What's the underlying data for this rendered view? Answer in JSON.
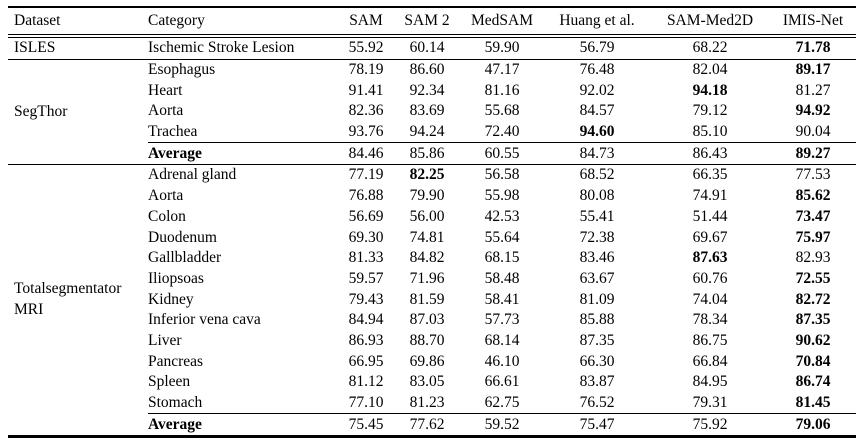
{
  "table": {
    "columns": [
      {
        "label": "Dataset"
      },
      {
        "label": "Category"
      },
      {
        "label": "SAM"
      },
      {
        "label": "SAM 2"
      },
      {
        "label": "MedSAM"
      },
      {
        "label": "Huang et al."
      },
      {
        "label": "SAM-Med2D"
      },
      {
        "label": "IMIS-Net"
      }
    ],
    "groups": [
      {
        "dataset": "ISLES",
        "rows": [
          {
            "category": "Ischemic Stroke Lesion",
            "values": [
              "55.92",
              "60.14",
              "59.90",
              "56.79",
              "68.22",
              "71.78"
            ],
            "bold": [
              5
            ]
          }
        ]
      },
      {
        "dataset": "SegThor",
        "rows": [
          {
            "category": "Esophagus",
            "values": [
              "78.19",
              "86.60",
              "47.17",
              "76.48",
              "82.04",
              "89.17"
            ],
            "bold": [
              5
            ]
          },
          {
            "category": "Heart",
            "values": [
              "91.41",
              "92.34",
              "81.16",
              "92.02",
              "94.18",
              "81.27"
            ],
            "bold": [
              4
            ]
          },
          {
            "category": "Aorta",
            "values": [
              "82.36",
              "83.69",
              "55.68",
              "84.57",
              "79.12",
              "94.92"
            ],
            "bold": [
              5
            ]
          },
          {
            "category": "Trachea",
            "values": [
              "93.76",
              "94.24",
              "72.40",
              "94.60",
              "85.10",
              "90.04"
            ],
            "bold": [
              3
            ]
          },
          {
            "category": "Average",
            "bold_category": true,
            "average": true,
            "values": [
              "84.46",
              "85.86",
              "60.55",
              "84.73",
              "86.43",
              "89.27"
            ],
            "bold": [
              5
            ]
          }
        ]
      },
      {
        "dataset": "Totalsegmentator MRI",
        "rows": [
          {
            "category": "Adrenal gland",
            "values": [
              "77.19",
              "82.25",
              "56.58",
              "68.52",
              "66.35",
              "77.53"
            ],
            "bold": [
              1
            ]
          },
          {
            "category": "Aorta",
            "values": [
              "76.88",
              "79.90",
              "55.98",
              "80.08",
              "74.91",
              "85.62"
            ],
            "bold": [
              5
            ]
          },
          {
            "category": "Colon",
            "values": [
              "56.69",
              "56.00",
              "42.53",
              "55.41",
              "51.44",
              "73.47"
            ],
            "bold": [
              5
            ]
          },
          {
            "category": "Duodenum",
            "values": [
              "69.30",
              "74.81",
              "55.64",
              "72.38",
              "69.67",
              "75.97"
            ],
            "bold": [
              5
            ]
          },
          {
            "category": "Gallbladder",
            "values": [
              "81.33",
              "84.82",
              "68.15",
              "83.46",
              "87.63",
              "82.93"
            ],
            "bold": [
              4
            ]
          },
          {
            "category": "Iliopsoas",
            "values": [
              "59.57",
              "71.96",
              "58.48",
              "63.67",
              "60.76",
              "72.55"
            ],
            "bold": [
              5
            ]
          },
          {
            "category": "Kidney",
            "values": [
              "79.43",
              "81.59",
              "58.41",
              "81.09",
              "74.04",
              "82.72"
            ],
            "bold": [
              5
            ]
          },
          {
            "category": "Inferior vena cava",
            "values": [
              "84.94",
              "87.03",
              "57.73",
              "85.88",
              "78.34",
              "87.35"
            ],
            "bold": [
              5
            ]
          },
          {
            "category": "Liver",
            "values": [
              "86.93",
              "88.70",
              "68.14",
              "87.35",
              "86.75",
              "90.62"
            ],
            "bold": [
              5
            ]
          },
          {
            "category": "Pancreas",
            "values": [
              "66.95",
              "69.86",
              "46.10",
              "66.30",
              "66.84",
              "70.84"
            ],
            "bold": [
              5
            ]
          },
          {
            "category": "Spleen",
            "values": [
              "81.12",
              "83.05",
              "66.61",
              "83.87",
              "84.95",
              "86.74"
            ],
            "bold": [
              5
            ]
          },
          {
            "category": "Stomach",
            "values": [
              "77.10",
              "81.23",
              "62.75",
              "76.52",
              "79.31",
              "81.45"
            ],
            "bold": [
              5
            ]
          },
          {
            "category": "Average",
            "bold_category": true,
            "average": true,
            "values": [
              "75.45",
              "77.62",
              "59.52",
              "75.47",
              "75.92",
              "79.06"
            ],
            "bold": [
              5
            ]
          }
        ]
      }
    ]
  }
}
